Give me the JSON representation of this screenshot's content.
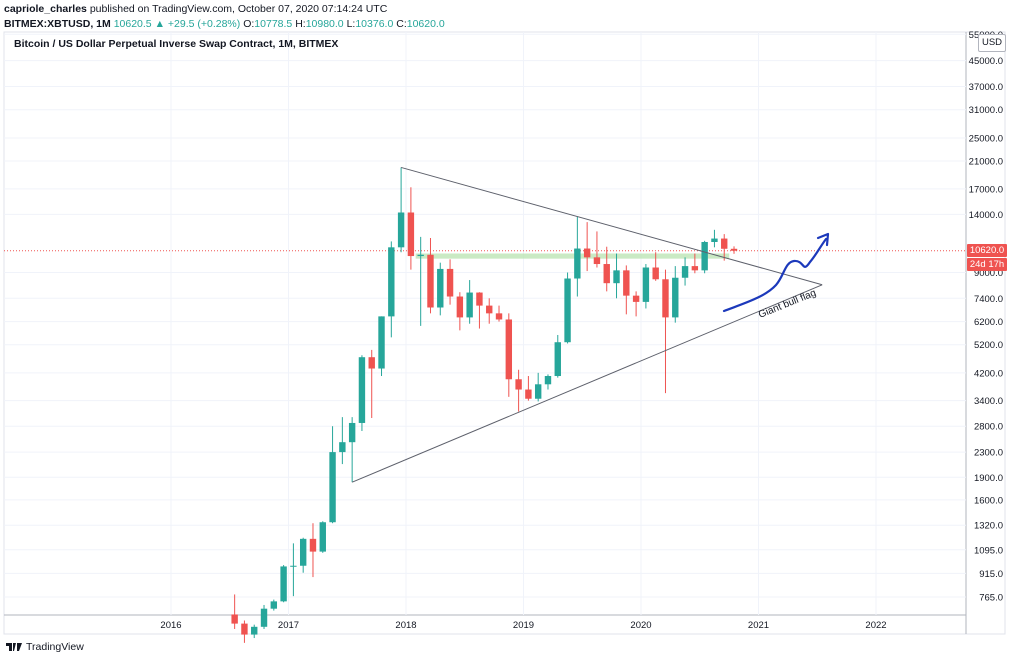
{
  "header": {
    "author": "capriole_charles",
    "published_text": "published on TradingView.com, October 07, 2020 07:14:24 UTC",
    "symbol": "BITMEX:XBTUSD, 1M",
    "last": "10620.5",
    "change": "▲ +29.5 (+0.28%)",
    "o_label": "O:",
    "o_value": "10778.5",
    "h_label": "H:",
    "h_value": "10980.0",
    "l_label": "L:",
    "l_value": "10376.0",
    "c_label": "C:",
    "c_value": "10620.0"
  },
  "footer": {
    "brand": "TradingView"
  },
  "chart_data": {
    "type": "candlestick",
    "title": "Bitcoin / US Dollar Perpetual Inverse Swap Contract, 1M, BITMEX",
    "currency": "USD",
    "y_scale": "log",
    "y_ticks": [
      "765.0",
      "915.0",
      "1095.0",
      "1320.0",
      "1600.0",
      "1900.0",
      "2300.0",
      "2800.0",
      "3400.0",
      "4200.0",
      "5200.0",
      "6200.0",
      "7400.0",
      "9000.0",
      "14000.0",
      "17000.0",
      "21000.0",
      "25000.0",
      "31000.0",
      "37000.0",
      "45000.0",
      "55000.0"
    ],
    "x_ticks": [
      "2016",
      "2017",
      "2018",
      "2019",
      "2020",
      "2021",
      "2022"
    ],
    "last_price_label": "10620.0",
    "countdown_label": "24d 17h",
    "annotation": "Giant bull flag",
    "colors": {
      "up": "#26a69a",
      "down": "#ef5350",
      "wick": "#7d8a8a",
      "lines": "#5d606b",
      "hand": "#1c39bb",
      "band": "#b8e3b0"
    },
    "candles": [
      {
        "t": "2016-07",
        "o": 670,
        "h": 780,
        "l": 600,
        "c": 625
      },
      {
        "t": "2016-08",
        "o": 625,
        "h": 640,
        "l": 540,
        "c": 575
      },
      {
        "t": "2016-09",
        "o": 575,
        "h": 620,
        "l": 560,
        "c": 610
      },
      {
        "t": "2016-10",
        "o": 610,
        "h": 720,
        "l": 600,
        "c": 700
      },
      {
        "t": "2016-11",
        "o": 700,
        "h": 750,
        "l": 690,
        "c": 740
      },
      {
        "t": "2016-12",
        "o": 740,
        "h": 975,
        "l": 735,
        "c": 965
      },
      {
        "t": "2017-01",
        "o": 965,
        "h": 1150,
        "l": 770,
        "c": 970
      },
      {
        "t": "2017-02",
        "o": 970,
        "h": 1200,
        "l": 920,
        "c": 1190
      },
      {
        "t": "2017-03",
        "o": 1190,
        "h": 1340,
        "l": 890,
        "c": 1080
      },
      {
        "t": "2017-04",
        "o": 1080,
        "h": 1360,
        "l": 1070,
        "c": 1350
      },
      {
        "t": "2017-05",
        "o": 1350,
        "h": 2800,
        "l": 1340,
        "c": 2300
      },
      {
        "t": "2017-06",
        "o": 2300,
        "h": 3000,
        "l": 2100,
        "c": 2480
      },
      {
        "t": "2017-07",
        "o": 2480,
        "h": 3000,
        "l": 1830,
        "c": 2870
      },
      {
        "t": "2017-08",
        "o": 2870,
        "h": 4800,
        "l": 2700,
        "c": 4730
      },
      {
        "t": "2017-09",
        "o": 4730,
        "h": 5000,
        "l": 2980,
        "c": 4340
      },
      {
        "t": "2017-10",
        "o": 4340,
        "h": 6450,
        "l": 4100,
        "c": 6450
      },
      {
        "t": "2017-11",
        "o": 6450,
        "h": 11400,
        "l": 5500,
        "c": 10900
      },
      {
        "t": "2017-12",
        "o": 10900,
        "h": 20000,
        "l": 10500,
        "c": 14200
      },
      {
        "t": "2018-01",
        "o": 14200,
        "h": 17200,
        "l": 9200,
        "c": 10200
      },
      {
        "t": "2018-02",
        "o": 10200,
        "h": 11800,
        "l": 6000,
        "c": 10300
      },
      {
        "t": "2018-03",
        "o": 10300,
        "h": 11700,
        "l": 6600,
        "c": 6900
      },
      {
        "t": "2018-04",
        "o": 6900,
        "h": 9700,
        "l": 6500,
        "c": 9250
      },
      {
        "t": "2018-05",
        "o": 9250,
        "h": 9950,
        "l": 7050,
        "c": 7500
      },
      {
        "t": "2018-06",
        "o": 7500,
        "h": 7750,
        "l": 5800,
        "c": 6400
      },
      {
        "t": "2018-07",
        "o": 6400,
        "h": 8500,
        "l": 6100,
        "c": 7730
      },
      {
        "t": "2018-08",
        "o": 7730,
        "h": 7750,
        "l": 5880,
        "c": 7000
      },
      {
        "t": "2018-09",
        "o": 7000,
        "h": 7400,
        "l": 6100,
        "c": 6600
      },
      {
        "t": "2018-10",
        "o": 6600,
        "h": 7000,
        "l": 6200,
        "c": 6300
      },
      {
        "t": "2018-11",
        "o": 6300,
        "h": 6600,
        "l": 3500,
        "c": 4000
      },
      {
        "t": "2018-12",
        "o": 4000,
        "h": 4300,
        "l": 3130,
        "c": 3700
      },
      {
        "t": "2019-01",
        "o": 3700,
        "h": 4100,
        "l": 3400,
        "c": 3450
      },
      {
        "t": "2019-02",
        "o": 3450,
        "h": 4200,
        "l": 3380,
        "c": 3850
      },
      {
        "t": "2019-03",
        "o": 3850,
        "h": 4150,
        "l": 3700,
        "c": 4100
      },
      {
        "t": "2019-04",
        "o": 4100,
        "h": 5600,
        "l": 4050,
        "c": 5300
      },
      {
        "t": "2019-05",
        "o": 5300,
        "h": 9000,
        "l": 5250,
        "c": 8600
      },
      {
        "t": "2019-06",
        "o": 8600,
        "h": 13800,
        "l": 7500,
        "c": 10800
      },
      {
        "t": "2019-07",
        "o": 10800,
        "h": 13200,
        "l": 9100,
        "c": 10100
      },
      {
        "t": "2019-08",
        "o": 10100,
        "h": 12300,
        "l": 9350,
        "c": 9600
      },
      {
        "t": "2019-09",
        "o": 9600,
        "h": 10950,
        "l": 7800,
        "c": 8300
      },
      {
        "t": "2019-10",
        "o": 8300,
        "h": 10400,
        "l": 7400,
        "c": 9150
      },
      {
        "t": "2019-11",
        "o": 9150,
        "h": 9500,
        "l": 6550,
        "c": 7550
      },
      {
        "t": "2019-12",
        "o": 7550,
        "h": 7800,
        "l": 6450,
        "c": 7200
      },
      {
        "t": "2020-01",
        "o": 7200,
        "h": 9600,
        "l": 6850,
        "c": 9350
      },
      {
        "t": "2020-02",
        "o": 9350,
        "h": 10500,
        "l": 8450,
        "c": 8550
      },
      {
        "t": "2020-03",
        "o": 8550,
        "h": 9200,
        "l": 3600,
        "c": 6400
      },
      {
        "t": "2020-04",
        "o": 6400,
        "h": 9450,
        "l": 6150,
        "c": 8650
      },
      {
        "t": "2020-05",
        "o": 8650,
        "h": 10100,
        "l": 8150,
        "c": 9450
      },
      {
        "t": "2020-06",
        "o": 9450,
        "h": 10400,
        "l": 8950,
        "c": 9150
      },
      {
        "t": "2020-07",
        "o": 9150,
        "h": 11450,
        "l": 8950,
        "c": 11350
      },
      {
        "t": "2020-08",
        "o": 11350,
        "h": 12450,
        "l": 10900,
        "c": 11650
      },
      {
        "t": "2020-09",
        "o": 11650,
        "h": 12050,
        "l": 9850,
        "c": 10780
      },
      {
        "t": "2020-10",
        "o": 10778.5,
        "h": 10980,
        "l": 10376,
        "c": 10620
      }
    ],
    "trendlines": [
      {
        "name": "upper",
        "from": {
          "t": "2017-12",
          "p": 20000
        },
        "to": {
          "t": "2021-07",
          "p": 8200
        }
      },
      {
        "name": "lower",
        "from": {
          "t": "2017-07",
          "p": 1830
        },
        "to": {
          "t": "2021-07",
          "p": 8200
        }
      }
    ],
    "support_band": {
      "from": "2018-02",
      "to": "2020-09",
      "low": 10000,
      "high": 10400
    }
  }
}
